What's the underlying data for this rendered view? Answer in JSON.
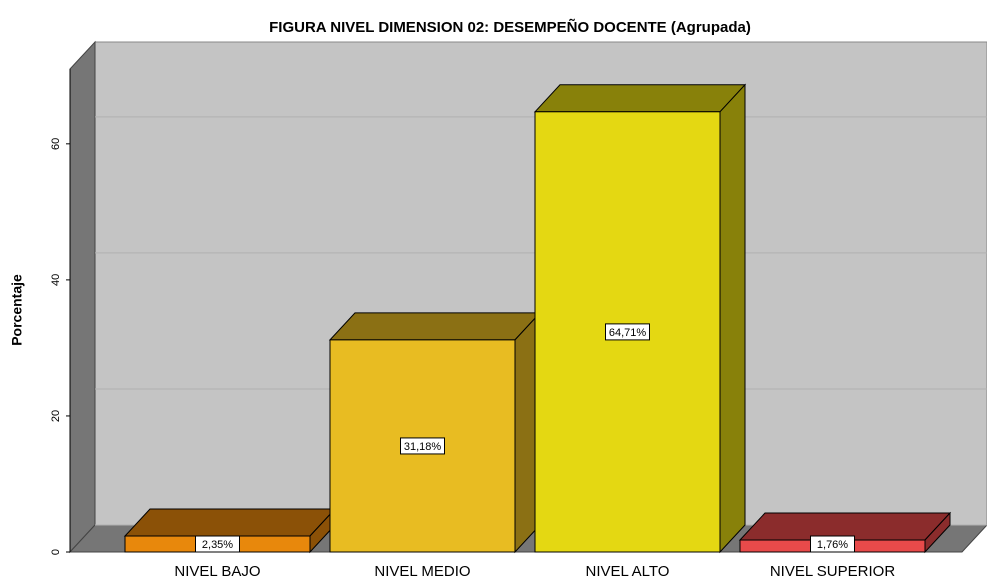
{
  "chart_data": {
    "type": "bar",
    "title": "FIGURA NIVEL DIMENSION 02: DESEMPEÑO DOCENTE (Agrupada)",
    "y_label": "Porcentaje",
    "categories": [
      "NIVEL BAJO",
      "NIVEL MEDIO",
      "NIVEL ALTO",
      "NIVEL SUPERIOR"
    ],
    "values": [
      2.35,
      31.18,
      64.71,
      1.76
    ],
    "value_labels": [
      "2,35%",
      "31,18%",
      "64,71%",
      "1,76%"
    ],
    "colors": [
      "#e8880c",
      "#e8bc22",
      "#e4d812",
      "#e84a4a"
    ],
    "ylim": [
      0,
      71
    ],
    "yticks": [
      0,
      20,
      40,
      60
    ],
    "grid": true
  }
}
